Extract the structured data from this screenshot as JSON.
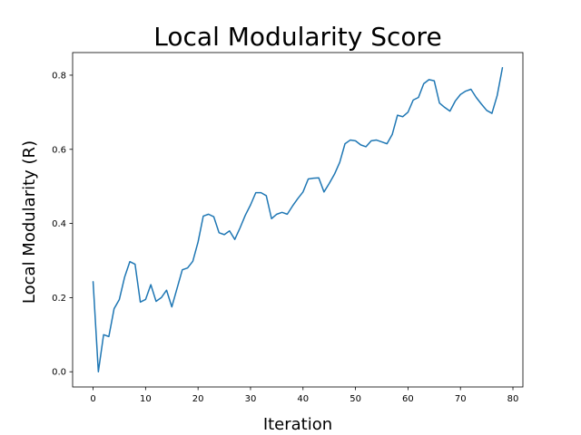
{
  "chart_data": {
    "type": "line",
    "title": "Local Modularity Score",
    "xlabel": "Iteration",
    "ylabel": "Local Modularity (R)",
    "xlim": [
      -3.9,
      81.9
    ],
    "ylim": [
      -0.041,
      0.861
    ],
    "xticks": [
      0,
      10,
      20,
      30,
      40,
      50,
      60,
      70,
      80
    ],
    "xtick_labels": [
      "0",
      "10",
      "20",
      "30",
      "40",
      "50",
      "60",
      "70",
      "80"
    ],
    "yticks": [
      0.0,
      0.2,
      0.4,
      0.6,
      0.8
    ],
    "ytick_labels": [
      "0.0",
      "0.2",
      "0.4",
      "0.6",
      "0.8"
    ],
    "grid": false,
    "series": [
      {
        "color": "#1f77b4",
        "x": [
          0,
          1,
          2,
          3,
          4,
          5,
          6,
          7,
          8,
          9,
          10,
          11,
          12,
          13,
          14,
          15,
          16,
          17,
          18,
          19,
          20,
          21,
          22,
          23,
          24,
          25,
          26,
          27,
          28,
          29,
          30,
          31,
          32,
          33,
          34,
          35,
          36,
          37,
          38,
          39,
          40,
          41,
          42,
          43,
          44,
          45,
          46,
          47,
          48,
          49,
          50,
          51,
          52,
          53,
          54,
          55,
          56,
          57,
          58,
          59,
          60,
          61,
          62,
          63,
          64,
          65,
          66,
          67,
          68,
          69,
          70,
          71,
          72,
          73,
          74,
          75,
          76,
          77,
          78
        ],
        "y": [
          0.243,
          0.0,
          0.1,
          0.095,
          0.17,
          0.195,
          0.255,
          0.297,
          0.29,
          0.188,
          0.195,
          0.235,
          0.19,
          0.2,
          0.22,
          0.175,
          0.225,
          0.275,
          0.28,
          0.298,
          0.35,
          0.42,
          0.425,
          0.418,
          0.375,
          0.37,
          0.38,
          0.357,
          0.388,
          0.422,
          0.45,
          0.483,
          0.483,
          0.475,
          0.413,
          0.425,
          0.43,
          0.425,
          0.447,
          0.467,
          0.485,
          0.52,
          0.522,
          0.523,
          0.485,
          0.508,
          0.533,
          0.565,
          0.615,
          0.625,
          0.623,
          0.612,
          0.607,
          0.623,
          0.625,
          0.62,
          0.615,
          0.64,
          0.692,
          0.688,
          0.7,
          0.733,
          0.74,
          0.777,
          0.788,
          0.785,
          0.725,
          0.713,
          0.703,
          0.73,
          0.748,
          0.757,
          0.762,
          0.74,
          0.722,
          0.705,
          0.697,
          0.745,
          0.82
        ]
      }
    ]
  }
}
